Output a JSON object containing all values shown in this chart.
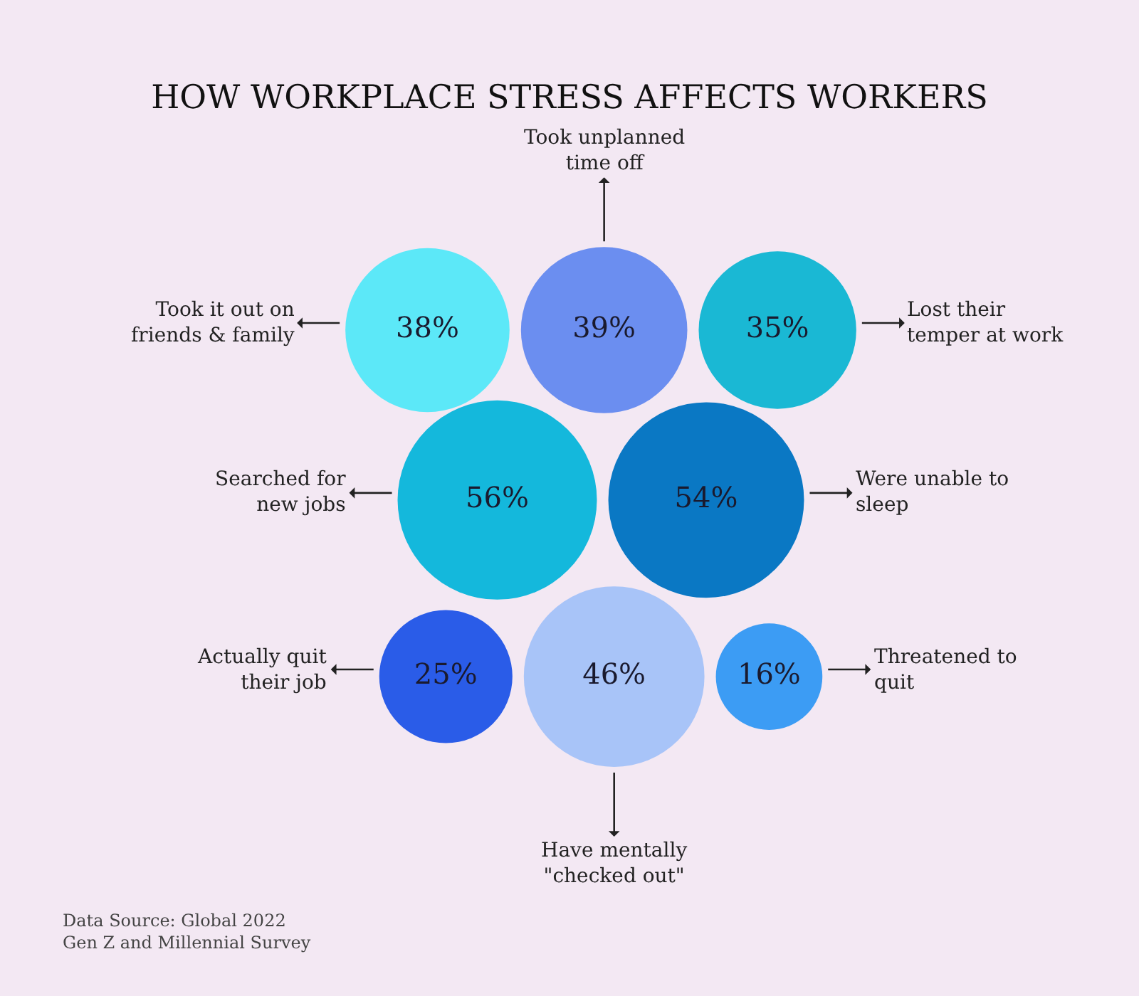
{
  "chart_data": {
    "type": "other",
    "title": "HOW WORKPLACE STRESS AFFECTS WORKERS",
    "categories": [
      "Took it out on\nfriends & family",
      "Took unplanned\ntime off",
      "Lost their\ntemper at work",
      "Searched for\nnew jobs",
      "Were unable to\nsleep",
      "Actually quit\ntheir job",
      "Have mentally\n\"checked out\"",
      "Threatened to\nquit"
    ],
    "values": [
      38,
      39,
      35,
      56,
      54,
      25,
      46,
      16
    ],
    "value_labels": [
      "38%",
      "39%",
      "35%",
      "56%",
      "54%",
      "25%",
      "46%",
      "16%"
    ],
    "colors": [
      "#5ce8f8",
      "#6b8ef0",
      "#1ab8d4",
      "#14b8dc",
      "#0a78c4",
      "#2a5ce8",
      "#a8c4f8",
      "#3c9cf4"
    ],
    "annotations": [
      "Data Source: Global 2022\nGen Z and Millennial Survey"
    ]
  }
}
